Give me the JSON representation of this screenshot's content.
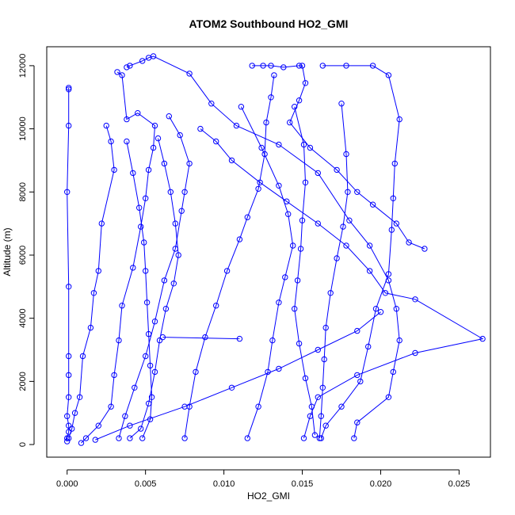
{
  "chart_data": {
    "type": "scatter",
    "title": "ATOM2 Southbound HO2_GMI",
    "xlabel": "HO2_GMI",
    "ylabel": "Altitude (m)",
    "xlim": [
      -0.0013,
      0.027
    ],
    "ylim": [
      -400,
      12600
    ],
    "x_ticks": [
      0.0,
      0.005,
      0.01,
      0.015,
      0.02,
      0.025
    ],
    "x_tick_labels": [
      "0.000",
      "0.005",
      "0.010",
      "0.015",
      "0.020",
      "0.025"
    ],
    "y_ticks": [
      0,
      2000,
      4000,
      6000,
      8000,
      10000,
      12000
    ],
    "y_tick_labels": [
      "0",
      "2000",
      "4000",
      "6000",
      "8000",
      "10000",
      "12000"
    ],
    "grid": false,
    "legend": "none",
    "marker": "open-circle",
    "color": "#0000ff",
    "series": [
      {
        "points": [
          [
            0.0001,
            11300
          ],
          [
            0.0001,
            11250
          ],
          [
            0.0001,
            10100
          ],
          [
            0.0,
            8000
          ],
          [
            0.0001,
            5000
          ],
          [
            0.0001,
            2800
          ],
          [
            0.0001,
            2200
          ],
          [
            0.0001,
            1500
          ],
          [
            0.0,
            900
          ],
          [
            0.0001,
            600
          ],
          [
            0.0001,
            400
          ],
          [
            0.0,
            200
          ],
          [
            0.0,
            100
          ]
        ]
      },
      {
        "points": [
          [
            0.0009,
            50
          ],
          [
            0.0012,
            200
          ],
          [
            0.002,
            600
          ],
          [
            0.0028,
            1200
          ],
          [
            0.003,
            2200
          ],
          [
            0.0033,
            3300
          ],
          [
            0.0035,
            4400
          ],
          [
            0.0042,
            5600
          ],
          [
            0.0047,
            6900
          ],
          [
            0.005,
            7800
          ],
          [
            0.0052,
            8700
          ],
          [
            0.0055,
            9400
          ],
          [
            0.0056,
            10100
          ],
          [
            0.0045,
            10500
          ],
          [
            0.0038,
            10300
          ],
          [
            0.0035,
            11700
          ],
          [
            0.0032,
            11800
          ]
        ]
      },
      {
        "points": [
          [
            0.0038,
            11950
          ],
          [
            0.004,
            12000
          ],
          [
            0.0048,
            12150
          ],
          [
            0.0052,
            12250
          ],
          [
            0.0055,
            12300
          ],
          [
            0.0078,
            11750
          ],
          [
            0.0092,
            10800
          ],
          [
            0.0108,
            10100
          ],
          [
            0.0135,
            9500
          ],
          [
            0.016,
            8600
          ],
          [
            0.018,
            7100
          ],
          [
            0.0193,
            6300
          ],
          [
            0.0205,
            5200
          ],
          [
            0.021,
            4300
          ],
          [
            0.0212,
            3300
          ],
          [
            0.0208,
            2300
          ],
          [
            0.0205,
            1500
          ],
          [
            0.0185,
            700
          ],
          [
            0.0183,
            200
          ]
        ]
      },
      {
        "points": [
          [
            0.0025,
            10100
          ],
          [
            0.0028,
            9600
          ],
          [
            0.003,
            8700
          ],
          [
            0.0022,
            7000
          ],
          [
            0.002,
            5500
          ],
          [
            0.0017,
            4800
          ],
          [
            0.0015,
            3700
          ],
          [
            0.001,
            2800
          ],
          [
            0.0008,
            1500
          ],
          [
            0.0005,
            1000
          ],
          [
            0.0003,
            500
          ],
          [
            0.0001,
            200
          ]
        ]
      },
      {
        "points": [
          [
            0.0065,
            10400
          ],
          [
            0.0072,
            9800
          ],
          [
            0.0078,
            8900
          ],
          [
            0.0075,
            8000
          ],
          [
            0.0073,
            7400
          ],
          [
            0.0069,
            6200
          ],
          [
            0.0062,
            5200
          ],
          [
            0.0056,
            3900
          ],
          [
            0.005,
            2800
          ],
          [
            0.0043,
            1800
          ],
          [
            0.0037,
            900
          ],
          [
            0.0033,
            200
          ]
        ]
      },
      {
        "points": [
          [
            0.0111,
            10700
          ],
          [
            0.0124,
            9400
          ],
          [
            0.0135,
            8200
          ],
          [
            0.0141,
            7300
          ],
          [
            0.0144,
            6300
          ],
          [
            0.0139,
            5300
          ],
          [
            0.0135,
            4500
          ],
          [
            0.0131,
            3300
          ],
          [
            0.0128,
            2300
          ],
          [
            0.0122,
            1200
          ],
          [
            0.0115,
            200
          ]
        ]
      },
      {
        "points": [
          [
            0.0085,
            10000
          ],
          [
            0.0095,
            9600
          ],
          [
            0.0105,
            9000
          ],
          [
            0.0123,
            8300
          ],
          [
            0.014,
            7700
          ],
          [
            0.016,
            7000
          ],
          [
            0.0178,
            6300
          ],
          [
            0.0193,
            5500
          ],
          [
            0.0203,
            4800
          ],
          [
            0.0222,
            4600
          ],
          [
            0.0265,
            3350
          ],
          [
            0.0222,
            2900
          ],
          [
            0.0185,
            2200
          ],
          [
            0.016,
            1500
          ],
          [
            0.0155,
            900
          ],
          [
            0.0151,
            200
          ]
        ]
      },
      {
        "points": [
          [
            0.0118,
            12000
          ],
          [
            0.0125,
            12000
          ],
          [
            0.013,
            12000
          ],
          [
            0.0138,
            11950
          ],
          [
            0.0148,
            12000
          ],
          [
            0.015,
            12000
          ],
          [
            0.0152,
            11450
          ],
          [
            0.0148,
            10900
          ],
          [
            0.0142,
            10200
          ],
          [
            0.0155,
            9400
          ],
          [
            0.0172,
            8700
          ],
          [
            0.0185,
            8000
          ],
          [
            0.0195,
            7600
          ],
          [
            0.021,
            7000
          ],
          [
            0.0218,
            6400
          ],
          [
            0.0228,
            6200
          ]
        ]
      },
      {
        "points": [
          [
            0.0163,
            12000
          ],
          [
            0.0178,
            12000
          ],
          [
            0.0195,
            12000
          ],
          [
            0.0205,
            11700
          ],
          [
            0.0212,
            10300
          ],
          [
            0.0209,
            8900
          ],
          [
            0.0208,
            7800
          ],
          [
            0.0207,
            6800
          ],
          [
            0.0205,
            5400
          ],
          [
            0.0197,
            4300
          ],
          [
            0.0192,
            3100
          ],
          [
            0.0187,
            2000
          ],
          [
            0.0175,
            1200
          ],
          [
            0.0165,
            600
          ],
          [
            0.0162,
            200
          ]
        ]
      },
      {
        "points": [
          [
            0.0145,
            10700
          ],
          [
            0.0151,
            9500
          ],
          [
            0.0152,
            8300
          ],
          [
            0.015,
            7100
          ],
          [
            0.0149,
            6200
          ],
          [
            0.0147,
            5200
          ],
          [
            0.0145,
            4300
          ],
          [
            0.0148,
            3200
          ],
          [
            0.0152,
            2100
          ],
          [
            0.0156,
            1200
          ],
          [
            0.0158,
            300
          ]
        ]
      },
      {
        "points": [
          [
            0.0038,
            9600
          ],
          [
            0.0042,
            8600
          ],
          [
            0.0046,
            7500
          ],
          [
            0.0049,
            6400
          ],
          [
            0.005,
            5500
          ],
          [
            0.0051,
            4500
          ],
          [
            0.0052,
            3500
          ],
          [
            0.0053,
            2500
          ],
          [
            0.0054,
            1500
          ],
          [
            0.0053,
            800
          ],
          [
            0.0048,
            200
          ]
        ]
      },
      {
        "points": [
          [
            0.0058,
            9700
          ],
          [
            0.0062,
            8900
          ],
          [
            0.0066,
            8000
          ],
          [
            0.0069,
            7000
          ],
          [
            0.0071,
            6000
          ],
          [
            0.0068,
            5100
          ],
          [
            0.0063,
            4300
          ],
          [
            0.0059,
            3300
          ],
          [
            0.0056,
            2300
          ],
          [
            0.0052,
            1300
          ],
          [
            0.0047,
            500
          ],
          [
            0.004,
            200
          ]
        ]
      },
      {
        "points": [
          [
            0.0061,
            3400
          ],
          [
            0.011,
            3350
          ]
        ]
      },
      {
        "points": [
          [
            0.0132,
            11700
          ],
          [
            0.013,
            11000
          ],
          [
            0.0127,
            10200
          ],
          [
            0.0126,
            9200
          ],
          [
            0.0122,
            8100
          ],
          [
            0.0115,
            7200
          ],
          [
            0.011,
            6500
          ],
          [
            0.0102,
            5500
          ],
          [
            0.0095,
            4400
          ],
          [
            0.0088,
            3400
          ],
          [
            0.0082,
            2300
          ],
          [
            0.0078,
            1200
          ],
          [
            0.0075,
            200
          ]
        ]
      },
      {
        "points": [
          [
            0.0175,
            10800
          ],
          [
            0.0178,
            9200
          ],
          [
            0.0179,
            8000
          ],
          [
            0.0176,
            6900
          ],
          [
            0.0172,
            5900
          ],
          [
            0.0168,
            4800
          ],
          [
            0.0165,
            3700
          ],
          [
            0.0164,
            2700
          ],
          [
            0.0163,
            1800
          ],
          [
            0.0162,
            900
          ],
          [
            0.0161,
            200
          ]
        ]
      },
      {
        "points": [
          [
            0.0018,
            150
          ],
          [
            0.004,
            600
          ],
          [
            0.0075,
            1200
          ],
          [
            0.0105,
            1800
          ],
          [
            0.0135,
            2400
          ],
          [
            0.016,
            3000
          ],
          [
            0.0185,
            3600
          ],
          [
            0.02,
            4200
          ]
        ]
      }
    ]
  }
}
